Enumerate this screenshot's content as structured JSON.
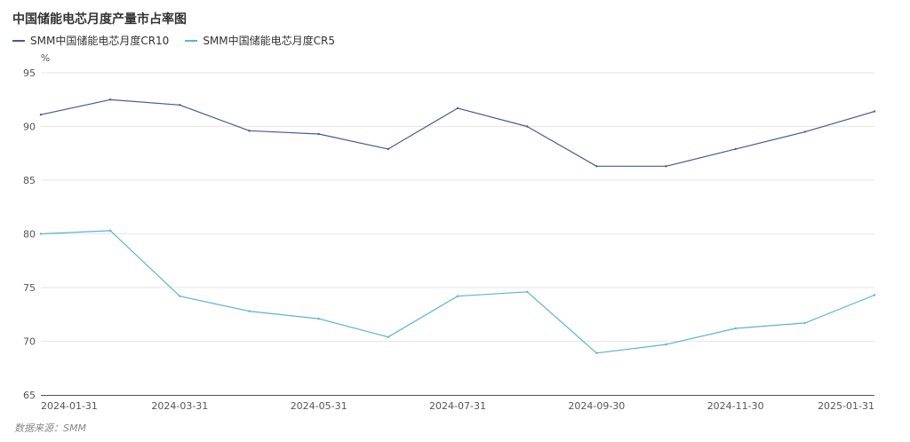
{
  "chart_data": {
    "type": "line",
    "title": "中国储能电芯月度产量市占率图",
    "ylabel": "%",
    "xlabel": "",
    "ylim": [
      65,
      95
    ],
    "yticks": [
      65,
      70,
      75,
      80,
      85,
      90,
      95
    ],
    "grid": true,
    "legend_position": "top-left",
    "categories": [
      "2024-01-31",
      "2024-02-29",
      "2024-03-31",
      "2024-04-30",
      "2024-05-31",
      "2024-06-30",
      "2024-07-31",
      "2024-08-31",
      "2024-09-30",
      "2024-10-31",
      "2024-11-30",
      "2024-12-31",
      "2025-01-31"
    ],
    "x_tick_labels": [
      "2024-01-31",
      "2024-03-31",
      "2024-05-31",
      "2024-07-31",
      "2024-09-30",
      "2024-11-30",
      "2025-01-31"
    ],
    "series": [
      {
        "name": "SMM中国储能电芯月度CR10",
        "color": "#4a5a8c",
        "values": [
          91.1,
          92.5,
          92.0,
          89.6,
          89.3,
          87.9,
          91.7,
          90.0,
          86.3,
          86.3,
          87.9,
          89.5,
          91.4
        ]
      },
      {
        "name": "SMM中国储能电芯月度CR5",
        "color": "#5ab4d6",
        "values": [
          80.0,
          80.3,
          74.2,
          72.8,
          72.1,
          70.4,
          74.2,
          74.6,
          68.9,
          69.7,
          71.2,
          71.7,
          74.3
        ]
      }
    ]
  },
  "source": "数据来源：SMM"
}
